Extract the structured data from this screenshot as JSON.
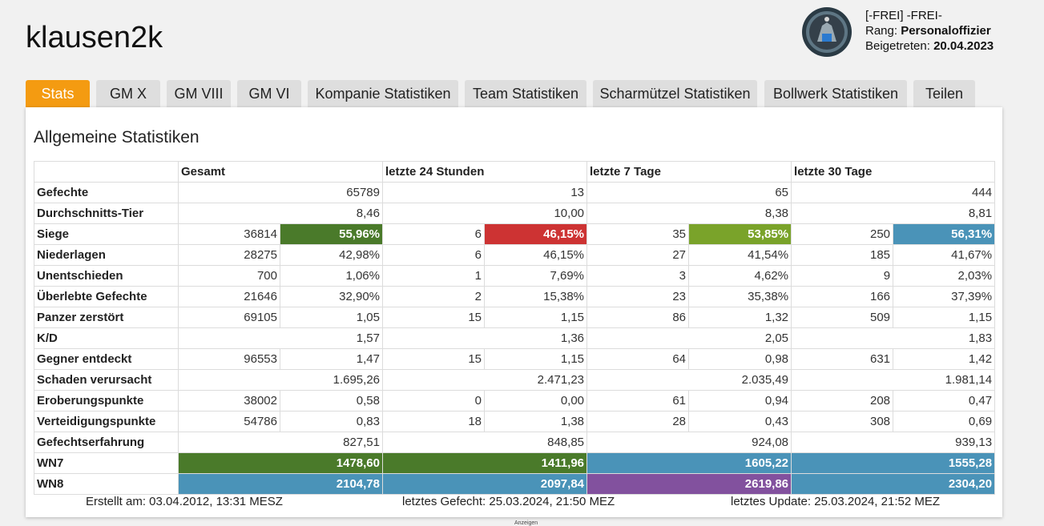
{
  "player": {
    "name": "klausen2k"
  },
  "clan": {
    "tag_line": "[-FREI] -FREI-",
    "rank_label": "Rang:",
    "rank_value": "Personaloffizier",
    "joined_label": "Beigetreten:",
    "joined_value": "20.04.2023"
  },
  "tabs": [
    "Stats",
    "GM X",
    "GM VIII",
    "GM VI",
    "Kompanie Statistiken",
    "Team Statistiken",
    "Scharmützel Statistiken",
    "Bollwerk Statistiken",
    "Teilen"
  ],
  "section": {
    "title": "Allgemeine Statistiken"
  },
  "table": {
    "headers": [
      "",
      "Gesamt",
      "letzte 24 Stunden",
      "letzte 7 Tage",
      "letzte 30 Tage"
    ],
    "rows": [
      {
        "label": "Gefechte",
        "cells": [
          [
            "65789"
          ],
          [
            "13"
          ],
          [
            "65"
          ],
          [
            "444"
          ]
        ]
      },
      {
        "label": "Durchschnitts-Tier",
        "cells": [
          [
            "8,46"
          ],
          [
            "10,00"
          ],
          [
            "8,38"
          ],
          [
            "8,81"
          ]
        ]
      },
      {
        "label": "Siege",
        "cells": [
          [
            "36814",
            "55,96%"
          ],
          [
            "6",
            "46,15%"
          ],
          [
            "35",
            "53,85%"
          ],
          [
            "250",
            "56,31%"
          ]
        ]
      },
      {
        "label": "Niederlagen",
        "cells": [
          [
            "28275",
            "42,98%"
          ],
          [
            "6",
            "46,15%"
          ],
          [
            "27",
            "41,54%"
          ],
          [
            "185",
            "41,67%"
          ]
        ]
      },
      {
        "label": "Unentschieden",
        "cells": [
          [
            "700",
            "1,06%"
          ],
          [
            "1",
            "7,69%"
          ],
          [
            "3",
            "4,62%"
          ],
          [
            "9",
            "2,03%"
          ]
        ]
      },
      {
        "label": "Überlebte Gefechte",
        "cells": [
          [
            "21646",
            "32,90%"
          ],
          [
            "2",
            "15,38%"
          ],
          [
            "23",
            "35,38%"
          ],
          [
            "166",
            "37,39%"
          ]
        ]
      },
      {
        "label": "Panzer zerstört",
        "cells": [
          [
            "69105",
            "1,05"
          ],
          [
            "15",
            "1,15"
          ],
          [
            "86",
            "1,32"
          ],
          [
            "509",
            "1,15"
          ]
        ]
      },
      {
        "label": "K/D",
        "cells": [
          [
            "1,57"
          ],
          [
            "1,36"
          ],
          [
            "2,05"
          ],
          [
            "1,83"
          ]
        ]
      },
      {
        "label": "Gegner entdeckt",
        "cells": [
          [
            "96553",
            "1,47"
          ],
          [
            "15",
            "1,15"
          ],
          [
            "64",
            "0,98"
          ],
          [
            "631",
            "1,42"
          ]
        ]
      },
      {
        "label": "Schaden verursacht",
        "cells": [
          [
            "1.695,26"
          ],
          [
            "2.471,23"
          ],
          [
            "2.035,49"
          ],
          [
            "1.981,14"
          ]
        ]
      },
      {
        "label": "Eroberungspunkte",
        "cells": [
          [
            "38002",
            "0,58"
          ],
          [
            "0",
            "0,00"
          ],
          [
            "61",
            "0,94"
          ],
          [
            "208",
            "0,47"
          ]
        ]
      },
      {
        "label": "Verteidigungspunkte",
        "cells": [
          [
            "54786",
            "0,83"
          ],
          [
            "18",
            "1,38"
          ],
          [
            "28",
            "0,43"
          ],
          [
            "308",
            "0,69"
          ]
        ]
      },
      {
        "label": "Gefechtserfahrung",
        "cells": [
          [
            "827,51"
          ],
          [
            "848,85"
          ],
          [
            "924,08"
          ],
          [
            "939,13"
          ]
        ]
      },
      {
        "label": "WN7",
        "cells": [
          [
            "1478,60"
          ],
          [
            "1411,96"
          ],
          [
            "1605,22"
          ],
          [
            "1555,28"
          ]
        ],
        "colors": [
          "#4a7a2a",
          "#4a7a2a",
          "#4a93b8",
          "#4a93b8"
        ]
      },
      {
        "label": "WN8",
        "cells": [
          [
            "2104,78"
          ],
          [
            "2097,84"
          ],
          [
            "2619,86"
          ],
          [
            "2304,20"
          ]
        ],
        "colors": [
          "#4a93b8",
          "#4a93b8",
          "#82519e",
          "#4a93b8"
        ]
      }
    ],
    "siege_colors": [
      "#4a7a2a",
      "#cd3333",
      "#7aa32a",
      "#4a93b8"
    ]
  },
  "footer": {
    "created": "Erstellt am: 03.04.2012, 13:31 MESZ",
    "last_battle": "letztes Gefecht: 25.03.2024, 21:50 MEZ",
    "last_update": "letztes Update: 25.03.2024, 21:52 MEZ"
  },
  "ad_label": "Anzeigen"
}
